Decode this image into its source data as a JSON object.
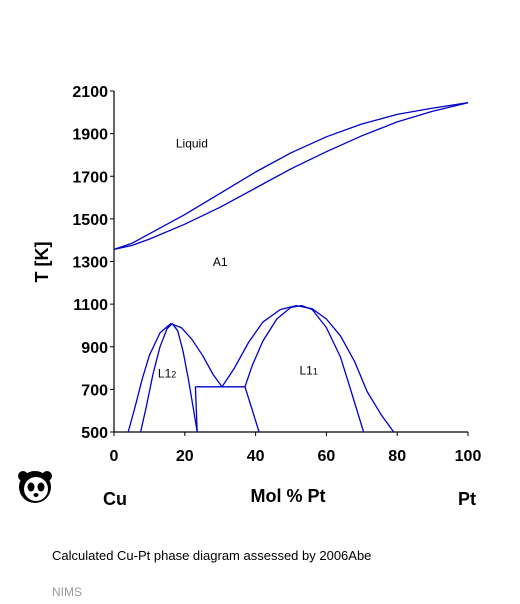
{
  "chart_data": {
    "type": "line",
    "title": "",
    "xlabel": "Mol % Pt",
    "ylabel": "T [K]",
    "x_end_labels": {
      "left": "Cu",
      "right": "Pt"
    },
    "xlim": [
      0,
      100
    ],
    "ylim": [
      500,
      2100
    ],
    "xticks": [
      0,
      20,
      40,
      60,
      80,
      100
    ],
    "yticks": [
      500,
      700,
      900,
      1100,
      1300,
      1500,
      1700,
      1900,
      2100
    ],
    "grid": false,
    "line_color": "#0000cc",
    "regions": [
      {
        "text": "Liquid",
        "x": 22,
        "y": 1835
      },
      {
        "text": "A1",
        "x": 30,
        "y": 1280
      },
      {
        "text": "L1",
        "sub": "2",
        "x": 15,
        "y": 755
      },
      {
        "text": "L1",
        "sub": "1",
        "x": 55,
        "y": 770
      }
    ],
    "series": [
      {
        "kind": "liquidus",
        "x": [
          0,
          5,
          10,
          20,
          30,
          40,
          50,
          60,
          70,
          80,
          90,
          100
        ],
        "y": [
          1357,
          1385,
          1430,
          1520,
          1620,
          1720,
          1810,
          1885,
          1945,
          1990,
          2020,
          2045
        ]
      },
      {
        "kind": "solidus",
        "x": [
          0,
          5,
          10,
          20,
          30,
          40,
          50,
          60,
          70,
          80,
          90,
          100
        ],
        "y": [
          1357,
          1375,
          1405,
          1475,
          1555,
          1645,
          1735,
          1815,
          1890,
          1955,
          2005,
          2045
        ]
      },
      {
        "kind": "L12 outer",
        "x": [
          4,
          6,
          8,
          10,
          13,
          16,
          19,
          22,
          25,
          28,
          30.5
        ],
        "y": [
          500,
          620,
          750,
          860,
          965,
          1008,
          990,
          935,
          860,
          770,
          712
        ]
      },
      {
        "kind": "L12 inner",
        "x": [
          7.5,
          9,
          11,
          13,
          15,
          16.5,
          18,
          19.5,
          21,
          22.5,
          23.5
        ],
        "y": [
          500,
          610,
          770,
          900,
          985,
          1008,
          975,
          880,
          750,
          600,
          500
        ]
      },
      {
        "kind": "L11 outer",
        "x": [
          30.5,
          34,
          38,
          42,
          47,
          51.5,
          56,
          60,
          64,
          68,
          71.5,
          75.5,
          79
        ],
        "y": [
          712,
          800,
          920,
          1015,
          1075,
          1093,
          1078,
          1030,
          950,
          830,
          690,
          580,
          500
        ]
      },
      {
        "kind": "L11 inner",
        "x": [
          37,
          39,
          42,
          46,
          50,
          53,
          56,
          60,
          64,
          67,
          70.5
        ],
        "y": [
          712,
          810,
          925,
          1030,
          1085,
          1093,
          1075,
          990,
          850,
          690,
          500
        ]
      },
      {
        "kind": "two-phase boundary",
        "x": [
          23,
          23.5
        ],
        "y": [
          712,
          500
        ]
      },
      {
        "kind": "two-phase boundary",
        "x": [
          37,
          41
        ],
        "y": [
          712,
          500
        ]
      },
      {
        "kind": "tie line",
        "x": [
          23,
          37
        ],
        "y": [
          712,
          712
        ]
      }
    ]
  },
  "caption": "Calculated Cu-Pt phase diagram assessed by 2006Abe",
  "credit": "NIMS",
  "logo": "panda-logo"
}
